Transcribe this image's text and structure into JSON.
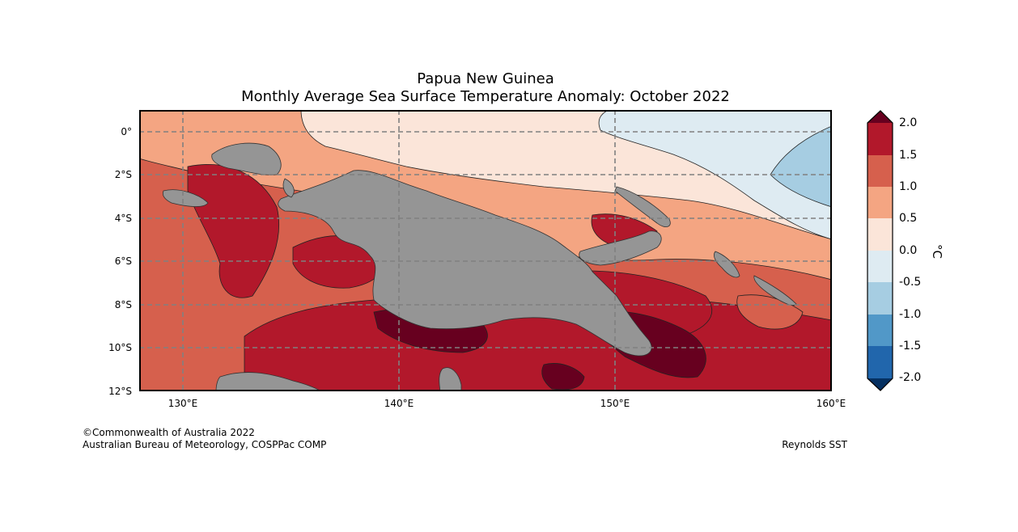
{
  "title": {
    "line1": "Papua New Guinea",
    "line2": "Monthly Average Sea Surface Temperature Anomaly: October 2022"
  },
  "map": {
    "region": "Papua New Guinea",
    "lat_ticks": [
      "0°",
      "2°S",
      "4°S",
      "6°S",
      "8°S",
      "10°S",
      "12°S"
    ],
    "lon_ticks": [
      "130°E",
      "140°E",
      "150°E",
      "160°E"
    ],
    "lat_range": [
      -12,
      1
    ],
    "lon_range": [
      128,
      160
    ],
    "gridlines": true,
    "land_color": "#959595"
  },
  "colorbar": {
    "unit": "°C",
    "labels": [
      "2.0",
      "1.5",
      "1.0",
      "0.5",
      "0.0",
      "-0.5",
      "-1.0",
      "-1.5",
      "-2.0"
    ],
    "colors": {
      "above_2.0": "#67001f",
      "1.5_to_2.0": "#b2182b",
      "1.0_to_1.5": "#d6604d",
      "0.5_to_1.0": "#f4a582",
      "0.0_to_0.5": "#fbe5d9",
      "-0.5_to_0.0": "#deebf2",
      "-1.0_to_-0.5": "#a6cde2",
      "-1.5_to_-1.0": "#5198c8",
      "-2.0_to_-1.5": "#2166ac",
      "below_-2.0": "#053061"
    }
  },
  "footer": {
    "copyright": "©Commonwealth of Australia 2022",
    "agency": "Australian Bureau of Meteorology, COSPPac COMP",
    "dataset": "Reynolds SST"
  }
}
